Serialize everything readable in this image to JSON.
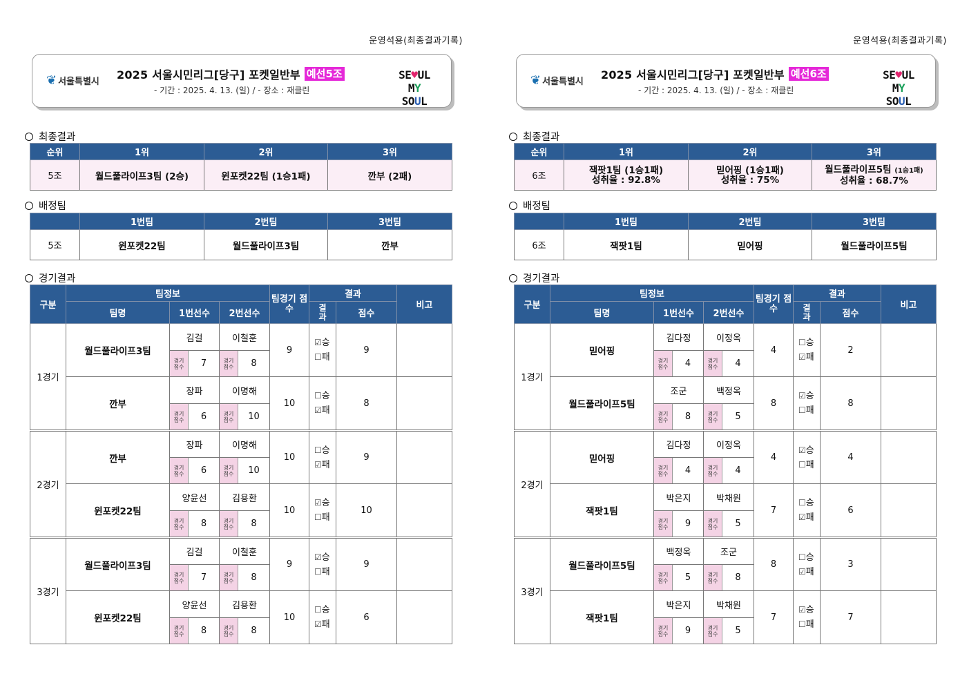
{
  "panels": [
    {
      "op_note": "운영석용(최종결과기록)",
      "logo_text": "서울특별시",
      "title": "2025  서울시민리그[당구]  포켓일반부",
      "group_badge": "예선5조",
      "subline": "-  기간  :  2025.  4.  13.  (일)  /  -  장소  :  재클린",
      "final_label": "최종결과",
      "final_headers": [
        "순위",
        "1위",
        "2위",
        "3위"
      ],
      "final_row": {
        "group": "5조",
        "first": "월드풀라이프3팀  (2승)",
        "second": "윈포켓22팀  (1승1패)",
        "third": "깐부  (2패)"
      },
      "assign_label": "배정팀",
      "assign_headers": [
        "",
        "1번팀",
        "2번팀",
        "3번팀"
      ],
      "assign_row": {
        "group": "5조",
        "t1": "윈포켓22팀",
        "t2": "월드풀라이프3팀",
        "t3": "깐부"
      },
      "match_label": "경기결과",
      "match_headers": {
        "div": "구분",
        "teaminfo": "팀정보",
        "teamname": "팀명",
        "p1": "1번선수",
        "p2": "2번선수",
        "teamscore": "팀경기 점수",
        "result": "결과",
        "wl": "결과",
        "points": "점수",
        "note": "비고"
      },
      "games": [
        {
          "label": "1경기",
          "teams": [
            {
              "name": "월드풀라이프3팀",
              "p1": "김걸",
              "p2": "이철훈",
              "s1": "7",
              "s2": "8",
              "team_score": "9",
              "win": true,
              "points": "9"
            },
            {
              "name": "깐부",
              "p1": "장파",
              "p2": "이명해",
              "s1": "6",
              "s2": "10",
              "team_score": "10",
              "win": false,
              "points": "8"
            }
          ]
        },
        {
          "label": "2경기",
          "teams": [
            {
              "name": "깐부",
              "p1": "장파",
              "p2": "이명해",
              "s1": "6",
              "s2": "10",
              "team_score": "10",
              "win": false,
              "points": "9"
            },
            {
              "name": "윈포켓22팀",
              "p1": "양윤선",
              "p2": "김용환",
              "s1": "8",
              "s2": "8",
              "team_score": "10",
              "win": true,
              "points": "10"
            }
          ]
        },
        {
          "label": "3경기",
          "teams": [
            {
              "name": "월드풀라이프3팀",
              "p1": "김걸",
              "p2": "이철훈",
              "s1": "7",
              "s2": "8",
              "team_score": "9",
              "win": true,
              "points": "9"
            },
            {
              "name": "윈포켓22팀",
              "p1": "양윤선",
              "p2": "김용환",
              "s1": "8",
              "s2": "8",
              "team_score": "10",
              "win": false,
              "points": "6"
            }
          ]
        }
      ]
    },
    {
      "op_note": "운영석용(최종결과기록)",
      "logo_text": "서울특별시",
      "title": "2025  서울시민리그[당구]  포켓일반부",
      "group_badge": "예선6조",
      "subline": "-  기간  :  2025.  4.  13.  (일)  /  -  장소  :  재클린",
      "final_label": "최종결과",
      "final_headers": [
        "순위",
        "1위",
        "2위",
        "3위"
      ],
      "final_row": {
        "group": "6조",
        "first": "잭팟1팀  (1승1패)",
        "first_sub": "성취율  :  92.8%",
        "second": "믿어핑  (1승1패)",
        "second_sub": "성취율  :  75%",
        "third": "월드풀라이프5팀",
        "third_note": "(1승1패)",
        "third_sub": "성취율  :  68.7%"
      },
      "assign_label": "배정팀",
      "assign_headers": [
        "",
        "1번팀",
        "2번팀",
        "3번팀"
      ],
      "assign_row": {
        "group": "6조",
        "t1": "잭팟1팀",
        "t2": "믿어핑",
        "t3": "월드풀라이프5팀"
      },
      "match_label": "경기결과",
      "match_headers": {
        "div": "구분",
        "teaminfo": "팀정보",
        "teamname": "팀명",
        "p1": "1번선수",
        "p2": "2번선수",
        "teamscore": "팀경기 점수",
        "result": "결과",
        "wl": "결과",
        "points": "점수",
        "note": "비고"
      },
      "games": [
        {
          "label": "1경기",
          "teams": [
            {
              "name": "믿어핑",
              "p1": "김다정",
              "p2": "이정옥",
              "s1": "4",
              "s2": "4",
              "team_score": "4",
              "win": false,
              "points": "2"
            },
            {
              "name": "월드풀라이프5팀",
              "p1": "조군",
              "p2": "백정옥",
              "s1": "8",
              "s2": "5",
              "team_score": "8",
              "win": true,
              "points": "8"
            }
          ]
        },
        {
          "label": "2경기",
          "teams": [
            {
              "name": "믿어핑",
              "p1": "김다정",
              "p2": "이정옥",
              "s1": "4",
              "s2": "4",
              "team_score": "4",
              "win": true,
              "points": "4"
            },
            {
              "name": "잭팟1팀",
              "p1": "박은지",
              "p2": "박채원",
              "s1": "9",
              "s2": "5",
              "team_score": "7",
              "win": false,
              "points": "6"
            }
          ]
        },
        {
          "label": "3경기",
          "teams": [
            {
              "name": "월드풀라이프5팀",
              "p1": "백정옥",
              "p2": "조군",
              "s1": "5",
              "s2": "8",
              "team_score": "8",
              "win": false,
              "points": "3"
            },
            {
              "name": "잭팟1팀",
              "p1": "박은지",
              "p2": "박채원",
              "s1": "9",
              "s2": "5",
              "team_score": "7",
              "win": true,
              "points": "7"
            }
          ]
        }
      ]
    }
  ],
  "labels": {
    "score_tag": "경기\n점수",
    "win": "승",
    "loss": "패",
    "checked": "☑",
    "unchecked": "☐",
    "logo_seoul": "SEOUL",
    "logo_mysoul": "MY SOUL"
  }
}
